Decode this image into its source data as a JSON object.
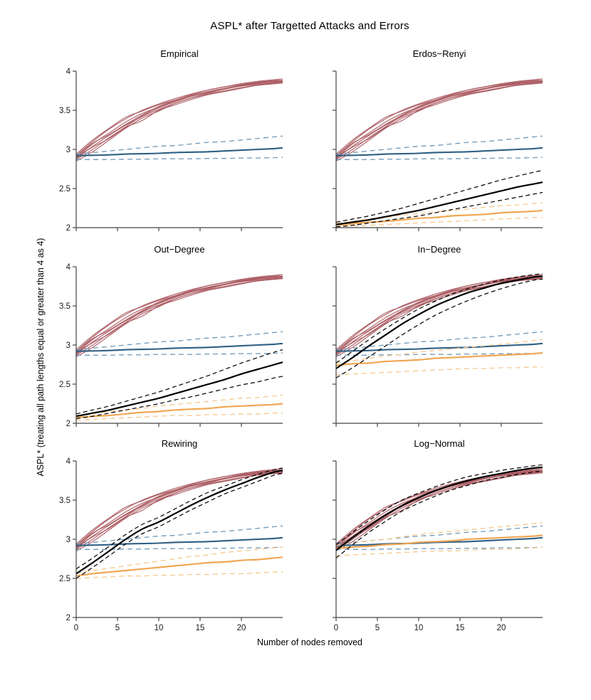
{
  "chart_data": {
    "type": "line",
    "title": "ASPL* after Targetted Attacks and Errors",
    "xlabel": "Number of nodes removed",
    "ylabel": "ASPL* (treating all path lengths equal or greater than 4 as 4)",
    "xlim": [
      0,
      25
    ],
    "ylim": [
      2,
      4
    ],
    "xticks": [
      0,
      5,
      10,
      15,
      20
    ],
    "yticks": [
      2,
      2.5,
      3,
      3.5,
      4
    ],
    "grid": false,
    "legend": "none",
    "x": [
      0,
      2,
      4,
      6,
      8,
      10,
      12,
      14,
      16,
      18,
      20,
      22,
      24,
      25
    ],
    "colors": {
      "empirical_attack": "#a9575d",
      "empirical_error_mean": "#2e6084",
      "empirical_error_ci": "#7199b8",
      "model_attack_mean": "#000000",
      "model_attack_ci": "#000000",
      "model_error_mean": "#f0a753",
      "model_error_ci": "#f6c890",
      "axis": "#454545",
      "tick_label": "#1a1a1a"
    },
    "shared": {
      "attack_runs": [
        [
          2.88,
          3.04,
          3.18,
          3.31,
          3.42,
          3.51,
          3.59,
          3.66,
          3.71,
          3.75,
          3.79,
          3.82,
          3.84,
          3.85
        ],
        [
          2.92,
          3.1,
          3.26,
          3.39,
          3.5,
          3.58,
          3.65,
          3.71,
          3.76,
          3.8,
          3.83,
          3.86,
          3.88,
          3.88
        ],
        [
          2.9,
          3.03,
          3.14,
          3.28,
          3.37,
          3.5,
          3.57,
          3.64,
          3.7,
          3.74,
          3.78,
          3.82,
          3.84,
          3.85
        ],
        [
          2.85,
          2.97,
          3.12,
          3.27,
          3.4,
          3.49,
          3.59,
          3.66,
          3.72,
          3.77,
          3.81,
          3.84,
          3.86,
          3.87
        ],
        [
          2.94,
          3.12,
          3.27,
          3.41,
          3.49,
          3.57,
          3.63,
          3.69,
          3.74,
          3.78,
          3.81,
          3.83,
          3.85,
          3.86
        ],
        [
          2.89,
          3.07,
          3.21,
          3.35,
          3.46,
          3.54,
          3.62,
          3.68,
          3.73,
          3.78,
          3.82,
          3.85,
          3.87,
          3.87
        ],
        [
          2.91,
          3.08,
          3.19,
          3.32,
          3.44,
          3.55,
          3.63,
          3.7,
          3.76,
          3.8,
          3.84,
          3.87,
          3.89,
          3.9
        ],
        [
          2.87,
          3.0,
          3.15,
          3.29,
          3.43,
          3.53,
          3.61,
          3.68,
          3.73,
          3.78,
          3.82,
          3.85,
          3.87,
          3.88
        ]
      ],
      "error": {
        "mean": [
          2.92,
          2.925,
          2.93,
          2.94,
          2.945,
          2.95,
          2.96,
          2.965,
          2.97,
          2.98,
          2.99,
          3.0,
          3.01,
          3.02
        ],
        "upper": [
          2.94,
          2.96,
          2.98,
          3.0,
          3.02,
          3.04,
          3.05,
          3.07,
          3.09,
          3.1,
          3.12,
          3.14,
          3.16,
          3.17
        ],
        "lower": [
          2.87,
          2.87,
          2.87,
          2.875,
          2.875,
          2.88,
          2.88,
          2.88,
          2.885,
          2.885,
          2.89,
          2.89,
          2.895,
          2.9
        ]
      }
    },
    "panels": [
      {
        "title": "Empirical",
        "show_y_labels": true,
        "show_x_labels": false,
        "model": null
      },
      {
        "title": "Erdos−Renyi",
        "show_y_labels": false,
        "show_x_labels": false,
        "model": {
          "attack": {
            "mean": [
              2.04,
              2.07,
              2.1,
              2.14,
              2.18,
              2.22,
              2.27,
              2.32,
              2.37,
              2.42,
              2.47,
              2.52,
              2.56,
              2.58
            ],
            "upper": [
              2.07,
              2.11,
              2.15,
              2.2,
              2.25,
              2.31,
              2.37,
              2.43,
              2.49,
              2.55,
              2.61,
              2.66,
              2.71,
              2.73
            ],
            "lower": [
              2.01,
              2.03,
              2.06,
              2.09,
              2.12,
              2.15,
              2.19,
              2.23,
              2.27,
              2.31,
              2.35,
              2.39,
              2.43,
              2.45
            ]
          },
          "error": {
            "mean": [
              2.03,
              2.05,
              2.07,
              2.08,
              2.1,
              2.12,
              2.13,
              2.15,
              2.16,
              2.17,
              2.19,
              2.2,
              2.21,
              2.22
            ],
            "upper": [
              2.06,
              2.08,
              2.11,
              2.13,
              2.16,
              2.18,
              2.2,
              2.22,
              2.24,
              2.26,
              2.28,
              2.29,
              2.31,
              2.32
            ],
            "lower": [
              2.01,
              2.02,
              2.03,
              2.04,
              2.05,
              2.06,
              2.07,
              2.08,
              2.09,
              2.1,
              2.11,
              2.12,
              2.13,
              2.13
            ]
          }
        }
      },
      {
        "title": "Out−Degree",
        "show_y_labels": true,
        "show_x_labels": false,
        "model": {
          "attack": {
            "mean": [
              2.09,
              2.13,
              2.17,
              2.22,
              2.27,
              2.32,
              2.38,
              2.44,
              2.5,
              2.56,
              2.63,
              2.69,
              2.75,
              2.78
            ],
            "upper": [
              2.12,
              2.17,
              2.22,
              2.28,
              2.34,
              2.4,
              2.47,
              2.54,
              2.61,
              2.69,
              2.77,
              2.84,
              2.91,
              2.94
            ],
            "lower": [
              2.06,
              2.09,
              2.13,
              2.17,
              2.21,
              2.25,
              2.3,
              2.34,
              2.39,
              2.44,
              2.49,
              2.53,
              2.58,
              2.6
            ]
          },
          "error": {
            "mean": [
              2.07,
              2.09,
              2.1,
              2.12,
              2.14,
              2.15,
              2.17,
              2.18,
              2.19,
              2.21,
              2.22,
              2.23,
              2.24,
              2.25
            ],
            "upper": [
              2.1,
              2.12,
              2.15,
              2.17,
              2.19,
              2.22,
              2.24,
              2.26,
              2.28,
              2.3,
              2.32,
              2.33,
              2.35,
              2.36
            ],
            "lower": [
              2.04,
              2.05,
              2.06,
              2.07,
              2.08,
              2.09,
              2.1,
              2.1,
              2.11,
              2.11,
              2.12,
              2.12,
              2.13,
              2.13
            ]
          }
        }
      },
      {
        "title": "In−Degree",
        "show_y_labels": false,
        "show_x_labels": false,
        "model": {
          "attack": {
            "mean": [
              2.7,
              2.84,
              2.99,
              3.13,
              3.27,
              3.39,
              3.5,
              3.59,
              3.67,
              3.73,
              3.79,
              3.83,
              3.87,
              3.88
            ],
            "upper": [
              2.77,
              2.92,
              3.07,
              3.21,
              3.34,
              3.46,
              3.56,
              3.65,
              3.72,
              3.78,
              3.83,
              3.87,
              3.9,
              3.91
            ],
            "lower": [
              2.58,
              2.71,
              2.85,
              2.99,
              3.13,
              3.26,
              3.38,
              3.48,
              3.57,
              3.65,
              3.72,
              3.78,
              3.83,
              3.84
            ]
          },
          "error": {
            "mean": [
              2.74,
              2.76,
              2.77,
              2.79,
              2.8,
              2.81,
              2.83,
              2.84,
              2.85,
              2.86,
              2.87,
              2.88,
              2.89,
              2.9
            ],
            "upper": [
              2.77,
              2.8,
              2.83,
              2.86,
              2.88,
              2.91,
              2.93,
              2.95,
              2.97,
              2.99,
              3.01,
              3.03,
              3.06,
              3.07
            ],
            "lower": [
              2.62,
              2.63,
              2.64,
              2.65,
              2.66,
              2.67,
              2.68,
              2.69,
              2.7,
              2.7,
              2.71,
              2.71,
              2.72,
              2.72
            ]
          }
        }
      },
      {
        "title": "Rewiring",
        "show_y_labels": true,
        "show_x_labels": true,
        "model": {
          "attack": {
            "mean": [
              2.56,
              2.7,
              2.85,
              3.0,
              3.13,
              3.22,
              3.33,
              3.44,
              3.54,
              3.63,
              3.71,
              3.79,
              3.86,
              3.88
            ],
            "upper": [
              2.62,
              2.76,
              2.91,
              3.06,
              3.19,
              3.28,
              3.39,
              3.5,
              3.6,
              3.68,
              3.76,
              3.83,
              3.89,
              3.91
            ],
            "lower": [
              2.5,
              2.64,
              2.79,
              2.94,
              3.07,
              3.16,
              3.27,
              3.38,
              3.48,
              3.58,
              3.66,
              3.74,
              3.82,
              3.84
            ]
          },
          "error": {
            "mean": [
              2.53,
              2.56,
              2.58,
              2.6,
              2.62,
              2.64,
              2.66,
              2.68,
              2.7,
              2.71,
              2.73,
              2.74,
              2.76,
              2.77
            ],
            "upper": [
              2.57,
              2.6,
              2.63,
              2.66,
              2.69,
              2.72,
              2.75,
              2.78,
              2.8,
              2.83,
              2.85,
              2.87,
              2.89,
              2.9
            ],
            "lower": [
              2.5,
              2.51,
              2.52,
              2.53,
              2.53,
              2.54,
              2.54,
              2.55,
              2.55,
              2.56,
              2.56,
              2.57,
              2.58,
              2.58
            ]
          }
        }
      },
      {
        "title": "Log−Normal",
        "show_y_labels": false,
        "show_x_labels": true,
        "model": {
          "attack": {
            "mean": [
              2.86,
              3.02,
              3.17,
              3.31,
              3.43,
              3.53,
              3.62,
              3.69,
              3.75,
              3.8,
              3.84,
              3.88,
              3.91,
              3.92
            ],
            "upper": [
              2.93,
              3.09,
              3.24,
              3.38,
              3.5,
              3.59,
              3.67,
              3.74,
              3.8,
              3.84,
              3.88,
              3.91,
              3.94,
              3.95
            ],
            "lower": [
              2.76,
              2.93,
              3.09,
              3.23,
              3.36,
              3.46,
              3.55,
              3.63,
              3.69,
              3.75,
              3.79,
              3.83,
              3.86,
              3.87
            ]
          },
          "error": {
            "mean": [
              2.88,
              2.9,
              2.91,
              2.93,
              2.94,
              2.96,
              2.97,
              2.98,
              3.0,
              3.01,
              3.02,
              3.03,
              3.04,
              3.05
            ],
            "upper": [
              2.92,
              2.95,
              2.98,
              3.0,
              3.03,
              3.06,
              3.08,
              3.1,
              3.12,
              3.14,
              3.16,
              3.18,
              3.2,
              3.21
            ],
            "lower": [
              2.79,
              2.8,
              2.81,
              2.82,
              2.83,
              2.84,
              2.85,
              2.85,
              2.86,
              2.87,
              2.87,
              2.88,
              2.89,
              2.9
            ]
          }
        }
      }
    ]
  }
}
